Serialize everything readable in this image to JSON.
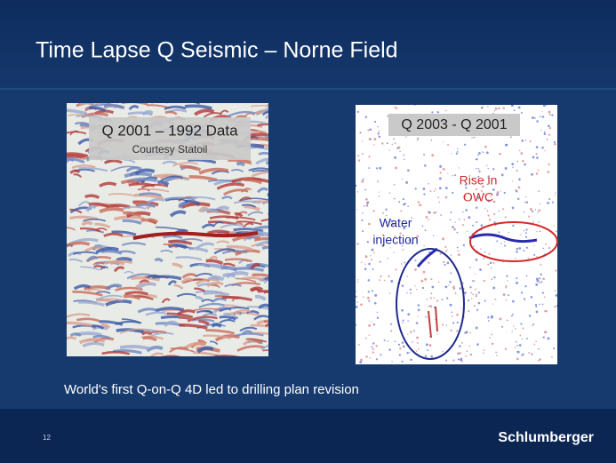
{
  "header": {
    "title": "Time Lapse Q Seismic – Norne Field"
  },
  "left_panel": {
    "label": "Q 2001 – 1992 Data",
    "credit": "Courtesy Statoil"
  },
  "right_panel": {
    "label": "Q 2003 - Q 2001",
    "red_note": [
      "Rise in",
      "OWC"
    ],
    "blue_note": [
      "Water",
      "injection"
    ]
  },
  "caption": "World's first Q-on-Q 4D led to drilling plan revision",
  "footer": {
    "page": "12",
    "logo": "Schlumberger"
  }
}
